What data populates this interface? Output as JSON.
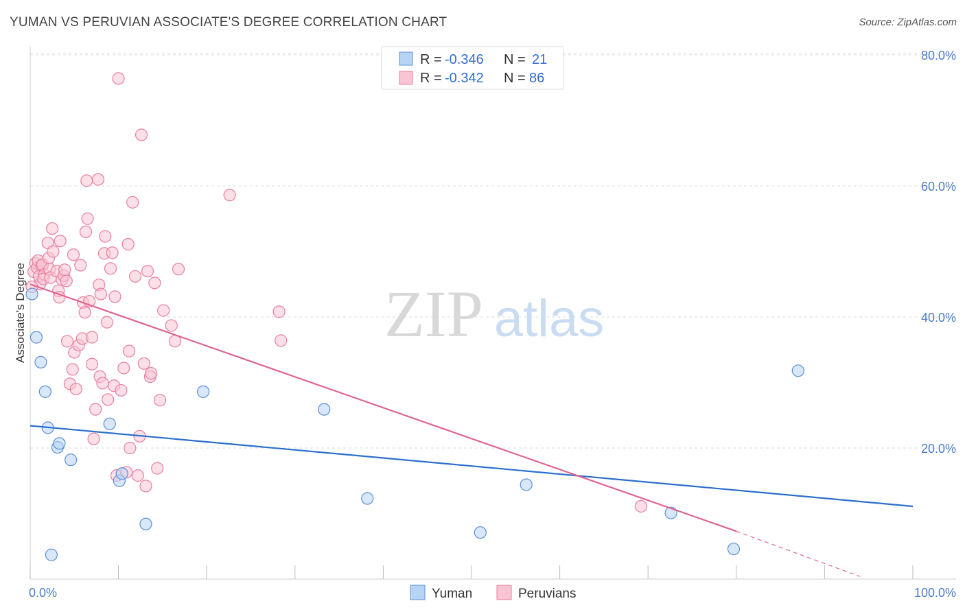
{
  "header": {
    "title": "YUMAN VS PERUVIAN ASSOCIATE'S DEGREE CORRELATION CHART",
    "source": "Source: ZipAtlas.com"
  },
  "watermark": {
    "zip": "ZIP",
    "atlas": "atlas"
  },
  "colors": {
    "yuman_fill": "#b8d4f5",
    "yuman_stroke": "#5b8fd6",
    "yuman_line": "#2a6fcc",
    "peruvian_fill": "#f9c4d4",
    "peruvian_stroke": "#e87fa0",
    "peruvian_line": "#e06490",
    "value_text": "#2f6fd0",
    "grid": "#dddddd"
  },
  "legend_top": [
    {
      "r_label": "R = ",
      "r_value": "-0.346",
      "n_label": "N = ",
      "n_value": "21"
    },
    {
      "r_label": "R = ",
      "r_value": "-0.342",
      "n_label": "N = ",
      "n_value": "86"
    }
  ],
  "chart_data": {
    "type": "scatter",
    "title": "YUMAN VS PERUVIAN ASSOCIATE'S DEGREE CORRELATION CHART",
    "xlabel": "",
    "ylabel": "Associate's Degree",
    "xlim": [
      0,
      100
    ],
    "ylim": [
      0,
      83
    ],
    "x_tick_labels": [
      "0.0%",
      "100.0%"
    ],
    "y_ticks": [
      20,
      40,
      60,
      80
    ],
    "y_tick_labels": [
      "20.0%",
      "40.0%",
      "60.0%",
      "80.0%"
    ],
    "grid": true,
    "legend_position": "bottom-center",
    "series": [
      {
        "name": "Yuman",
        "r": -0.346,
        "n": 21,
        "trend": {
          "x": [
            0,
            100
          ],
          "y": [
            23.4,
            11.1
          ]
        },
        "points": [
          [
            0.2,
            43.5
          ],
          [
            0.7,
            36.9
          ],
          [
            1.2,
            33.1
          ],
          [
            1.7,
            28.6
          ],
          [
            2.0,
            23.1
          ],
          [
            3.1,
            20.1
          ],
          [
            3.3,
            20.7
          ],
          [
            4.6,
            18.2
          ],
          [
            2.4,
            3.7
          ],
          [
            9.0,
            23.7
          ],
          [
            10.1,
            15.0
          ],
          [
            10.4,
            16.1
          ],
          [
            13.1,
            8.4
          ],
          [
            19.6,
            28.6
          ],
          [
            33.3,
            25.9
          ],
          [
            38.2,
            12.3
          ],
          [
            51.0,
            7.1
          ],
          [
            56.2,
            14.4
          ],
          [
            72.6,
            10.1
          ],
          [
            79.7,
            4.6
          ],
          [
            87.0,
            31.8
          ]
        ]
      },
      {
        "name": "Peruvians",
        "r": -0.342,
        "n": 86,
        "trend": {
          "x": [
            0,
            80
          ],
          "y": [
            45.0,
            7.3
          ]
        },
        "trend_dashed": {
          "x": [
            80,
            94
          ],
          "y": [
            7.3,
            0.4
          ]
        },
        "points": [
          [
            0.4,
            46.9
          ],
          [
            0.6,
            48.2
          ],
          [
            0.8,
            47.5
          ],
          [
            0.9,
            48.6
          ],
          [
            1.0,
            46.2
          ],
          [
            1.1,
            45.0
          ],
          [
            1.3,
            47.8
          ],
          [
            1.4,
            48.0
          ],
          [
            1.6,
            46.5
          ],
          [
            1.5,
            45.8
          ],
          [
            2.0,
            51.3
          ],
          [
            2.1,
            49.0
          ],
          [
            2.2,
            47.3
          ],
          [
            2.3,
            46.0
          ],
          [
            2.6,
            50.0
          ],
          [
            2.5,
            53.5
          ],
          [
            3.0,
            47.0
          ],
          [
            3.2,
            44.0
          ],
          [
            3.3,
            43.0
          ],
          [
            3.4,
            51.6
          ],
          [
            3.6,
            45.7
          ],
          [
            3.8,
            46.3
          ],
          [
            3.9,
            47.2
          ],
          [
            4.1,
            45.5
          ],
          [
            4.2,
            36.3
          ],
          [
            4.5,
            29.8
          ],
          [
            4.8,
            32.0
          ],
          [
            4.9,
            49.5
          ],
          [
            5.0,
            34.6
          ],
          [
            5.2,
            29.0
          ],
          [
            5.5,
            35.7
          ],
          [
            5.7,
            47.9
          ],
          [
            5.9,
            36.7
          ],
          [
            6.0,
            42.2
          ],
          [
            6.2,
            40.7
          ],
          [
            6.3,
            53.0
          ],
          [
            6.5,
            55.0
          ],
          [
            6.4,
            60.8
          ],
          [
            6.7,
            42.4
          ],
          [
            7.0,
            36.9
          ],
          [
            7.0,
            32.8
          ],
          [
            7.2,
            21.4
          ],
          [
            7.4,
            25.9
          ],
          [
            7.7,
            61.0
          ],
          [
            7.8,
            44.9
          ],
          [
            7.9,
            30.9
          ],
          [
            8.0,
            43.5
          ],
          [
            8.2,
            29.9
          ],
          [
            8.4,
            49.7
          ],
          [
            8.5,
            52.3
          ],
          [
            8.7,
            39.2
          ],
          [
            8.8,
            27.4
          ],
          [
            9.1,
            47.4
          ],
          [
            9.3,
            49.8
          ],
          [
            9.5,
            29.5
          ],
          [
            9.6,
            43.1
          ],
          [
            9.8,
            15.8
          ],
          [
            10.0,
            76.4
          ],
          [
            10.3,
            28.8
          ],
          [
            10.6,
            32.2
          ],
          [
            10.9,
            16.3
          ],
          [
            11.1,
            51.1
          ],
          [
            11.2,
            34.8
          ],
          [
            11.3,
            20.0
          ],
          [
            11.6,
            57.5
          ],
          [
            11.9,
            46.2
          ],
          [
            12.2,
            15.8
          ],
          [
            12.4,
            21.8
          ],
          [
            12.6,
            67.8
          ],
          [
            12.9,
            32.9
          ],
          [
            13.1,
            14.2
          ],
          [
            13.3,
            47.0
          ],
          [
            13.6,
            30.9
          ],
          [
            13.7,
            31.4
          ],
          [
            14.1,
            45.2
          ],
          [
            14.4,
            16.9
          ],
          [
            14.7,
            27.3
          ],
          [
            15.1,
            41.0
          ],
          [
            16.0,
            38.7
          ],
          [
            16.4,
            36.3
          ],
          [
            16.8,
            47.3
          ],
          [
            22.6,
            58.6
          ],
          [
            28.2,
            40.8
          ],
          [
            28.4,
            36.4
          ],
          [
            69.2,
            11.1
          ],
          [
            0.2,
            44.6
          ]
        ]
      }
    ]
  },
  "legend_bottom": [
    {
      "label": "Yuman"
    },
    {
      "label": "Peruvians"
    }
  ]
}
